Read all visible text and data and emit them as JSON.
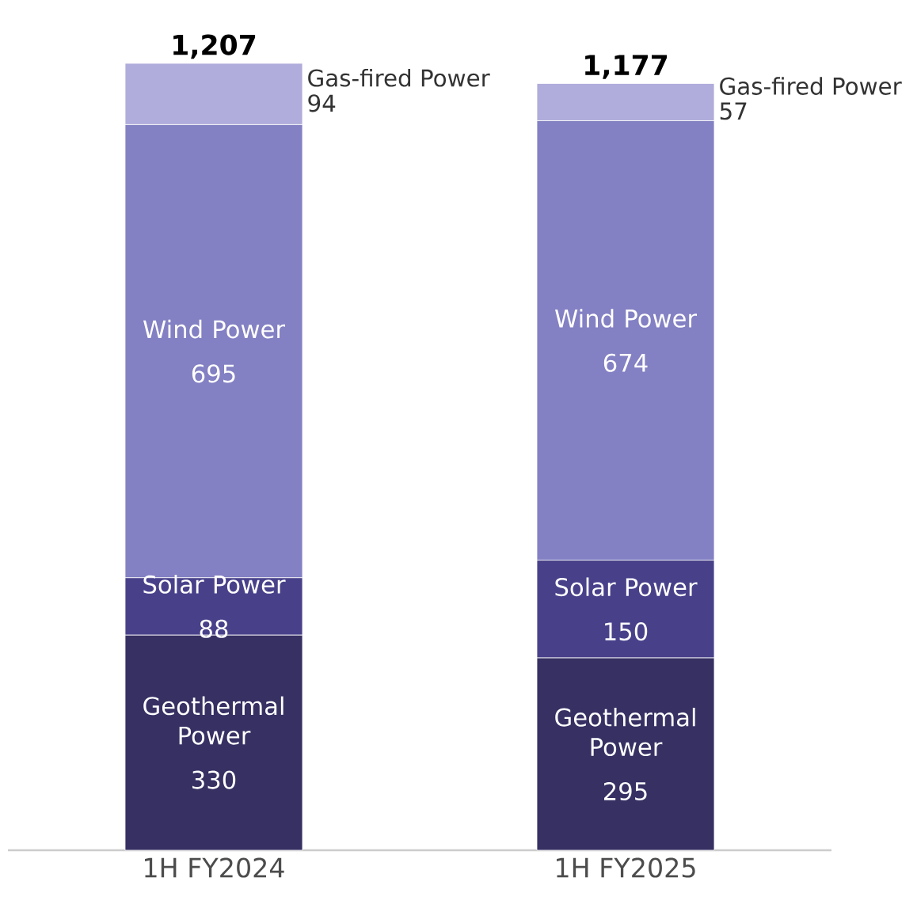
{
  "chart_data": {
    "type": "bar",
    "stacked": true,
    "data_labels": true,
    "tick_labels": "x",
    "categories": [
      "1H FY2024",
      "1H FY2025"
    ],
    "series": [
      {
        "name": "Geothermal Power",
        "color": "#363063",
        "values": [
          330,
          295
        ]
      },
      {
        "name": "Solar Power",
        "color": "#48418a",
        "values": [
          88,
          150
        ]
      },
      {
        "name": "Wind Power",
        "color": "#8380c3",
        "values": [
          695,
          674
        ]
      },
      {
        "name": "Gas-fired Power",
        "color": "#b0acdb",
        "values": [
          94,
          57
        ]
      }
    ],
    "totals": [
      "1,207",
      "1,177"
    ]
  }
}
